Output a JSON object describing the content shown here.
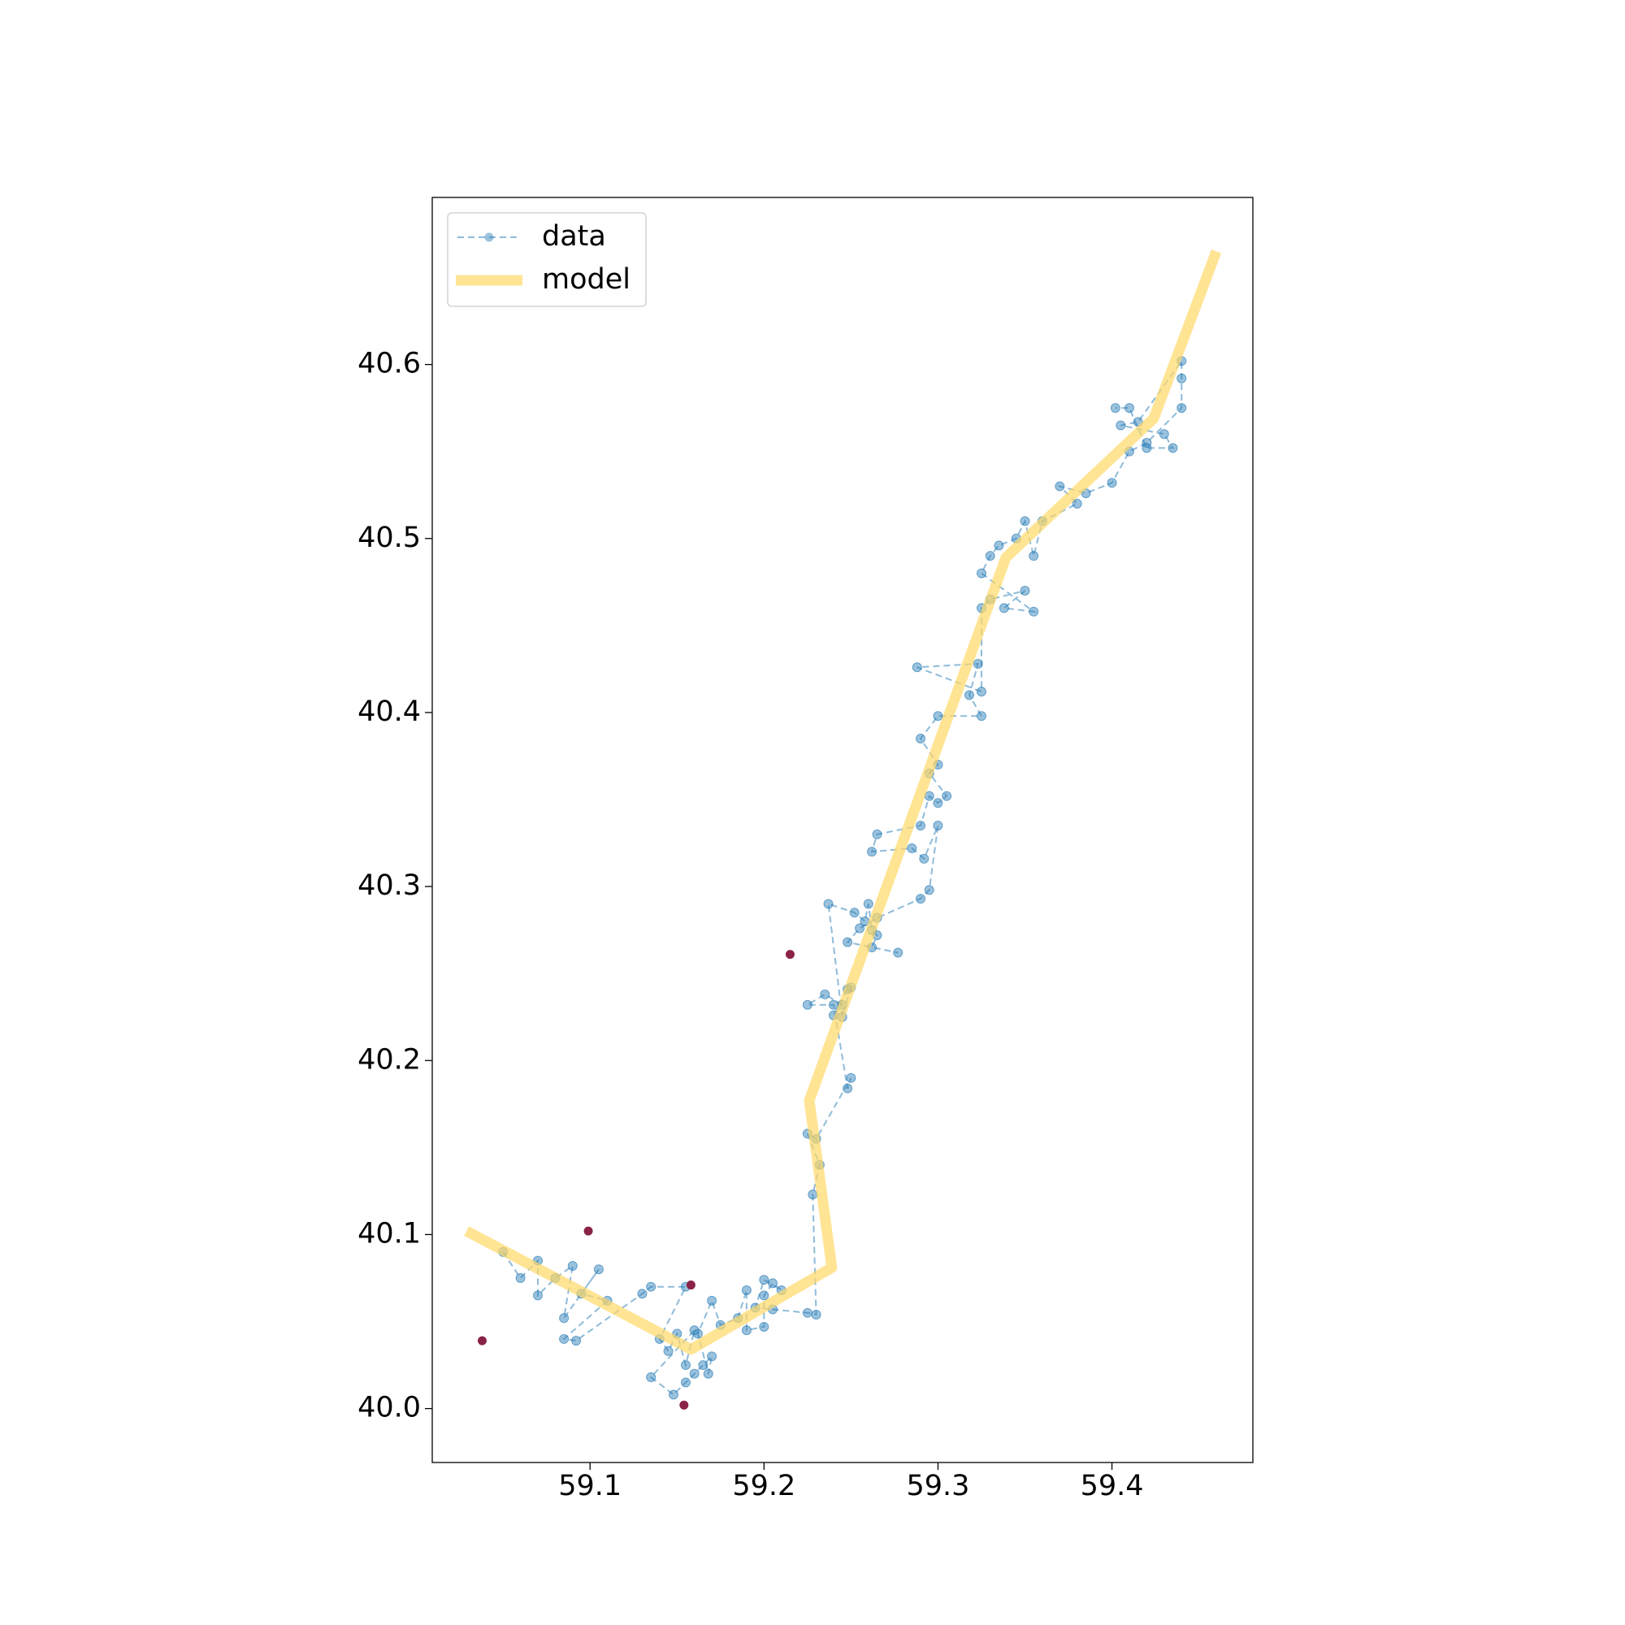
{
  "chart_data": {
    "type": "line",
    "xlim": [
      59.0093,
      59.481
    ],
    "ylim": [
      39.969,
      40.696
    ],
    "xticks": [
      59.1,
      59.2,
      59.3,
      59.4
    ],
    "yticks": [
      {
        "value": 40,
        "label": "40.0"
      },
      40.1,
      40.2,
      40.3,
      40.4,
      40.5,
      40.6
    ],
    "legend": "upper left",
    "series": [
      {
        "name": "data",
        "color": "#1f77b4",
        "x": [
          59.05,
          59.06,
          59.07,
          59.07,
          59.08,
          59.09,
          59.085,
          59.105,
          59.095,
          59.11,
          59.085,
          59.092,
          59.13,
          59.135,
          59.155,
          59.14,
          59.145,
          59.15,
          59.155,
          59.16,
          59.135,
          59.148,
          59.155,
          59.16,
          59.165,
          59.17,
          59.168,
          59.162,
          59.17,
          59.175,
          59.185,
          59.19,
          59.19,
          59.2,
          59.2,
          59.205,
          59.21,
          59.2,
          59.195,
          59.205,
          59.225,
          59.23,
          59.228,
          59.232,
          59.225,
          59.23,
          59.25,
          59.248,
          59.24,
          59.225,
          59.235,
          59.245,
          59.24,
          59.248,
          59.25,
          59.245,
          59.237,
          59.252,
          59.258,
          59.26,
          59.262,
          59.265,
          59.262,
          59.277,
          59.248,
          59.255,
          59.265,
          59.29,
          59.295,
          59.3,
          59.292,
          59.285,
          59.262,
          59.265,
          59.29,
          59.295,
          59.3,
          59.305,
          59.295,
          59.3,
          59.29,
          59.3,
          59.325,
          59.318,
          59.323,
          59.288,
          59.325,
          59.325,
          59.33,
          59.35,
          59.338,
          59.355,
          59.325,
          59.33,
          59.335,
          59.345,
          59.35,
          59.355,
          59.36,
          59.38,
          59.37,
          59.385,
          59.4,
          59.41,
          59.42,
          59.44,
          59.44,
          59.44,
          59.415,
          59.405,
          59.43,
          59.435,
          59.42,
          59.41,
          59.402
        ],
        "values": [
          40.09,
          40.075,
          40.085,
          40.065,
          40.075,
          40.082,
          40.052,
          40.08,
          40.066,
          40.062,
          40.04,
          40.039,
          40.066,
          40.07,
          40.07,
          40.04,
          40.033,
          40.043,
          40.025,
          40.045,
          40.018,
          40.008,
          40.015,
          40.02,
          40.025,
          40.03,
          40.02,
          40.043,
          40.062,
          40.048,
          40.052,
          40.068,
          40.045,
          40.047,
          40.065,
          40.072,
          40.068,
          40.074,
          40.058,
          40.057,
          40.055,
          40.054,
          40.123,
          40.14,
          40.158,
          40.155,
          40.19,
          40.184,
          40.232,
          40.232,
          40.238,
          40.232,
          40.226,
          40.241,
          40.242,
          40.225,
          40.29,
          40.285,
          40.28,
          40.29,
          40.275,
          40.272,
          40.265,
          40.262,
          40.268,
          40.276,
          40.282,
          40.293,
          40.298,
          40.335,
          40.316,
          40.322,
          40.32,
          40.33,
          40.335,
          40.352,
          40.348,
          40.352,
          40.365,
          40.37,
          40.385,
          40.398,
          40.398,
          40.41,
          40.428,
          40.426,
          40.412,
          40.46,
          40.465,
          40.47,
          40.46,
          40.458,
          40.48,
          40.49,
          40.496,
          40.5,
          40.51,
          40.49,
          40.51,
          40.52,
          40.53,
          40.526,
          40.532,
          40.55,
          40.555,
          40.575,
          40.592,
          40.602,
          40.567,
          40.565,
          40.56,
          40.552,
          40.552,
          40.575,
          40.575
        ]
      },
      {
        "name": "model",
        "color": "#ffd966",
        "x": [
          59.029,
          59.158,
          59.239,
          59.226,
          59.339,
          59.424,
          59.46
        ],
        "values": [
          40.102,
          40.034,
          40.081,
          40.177,
          40.489,
          40.569,
          40.665
        ]
      }
    ],
    "highlight_points": {
      "color": "#8b2248",
      "x": [
        59.038,
        59.099,
        59.158,
        59.154,
        59.215
      ],
      "values": [
        40.039,
        40.102,
        40.071,
        40.002,
        40.261
      ]
    }
  }
}
